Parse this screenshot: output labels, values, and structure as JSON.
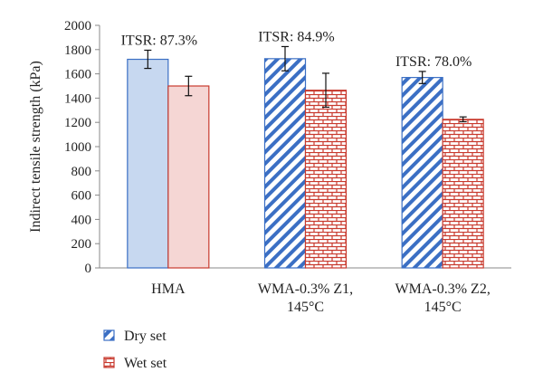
{
  "chart_data": {
    "type": "bar",
    "ylabel": "Indirect tensile strength (kPa)",
    "ylim": [
      0,
      2000
    ],
    "yticks": [
      0,
      200,
      400,
      600,
      800,
      1000,
      1200,
      1400,
      1600,
      1800,
      2000
    ],
    "grid": false,
    "legend_position": "bottom-left",
    "categories": [
      [
        "HMA"
      ],
      [
        "WMA-0.3% Z1,",
        "145°C"
      ],
      [
        "WMA-0.3% Z2,",
        "145°C"
      ]
    ],
    "series": [
      {
        "name": "Dry set",
        "values": [
          1720,
          1725,
          1570
        ],
        "errors": [
          75,
          100,
          50
        ],
        "color": "#3b6fc4",
        "fill": "#c7d8f0",
        "pattern": "diagonal"
      },
      {
        "name": "Wet set",
        "values": [
          1500,
          1465,
          1225
        ],
        "errors": [
          80,
          140,
          20
        ],
        "color": "#c83a2e",
        "fill": "#f5d6d4",
        "pattern": "brick"
      }
    ],
    "annotations": [
      "ITSR: 87.3%",
      "ITSR: 84.9%",
      "ITSR: 78.0%"
    ]
  }
}
